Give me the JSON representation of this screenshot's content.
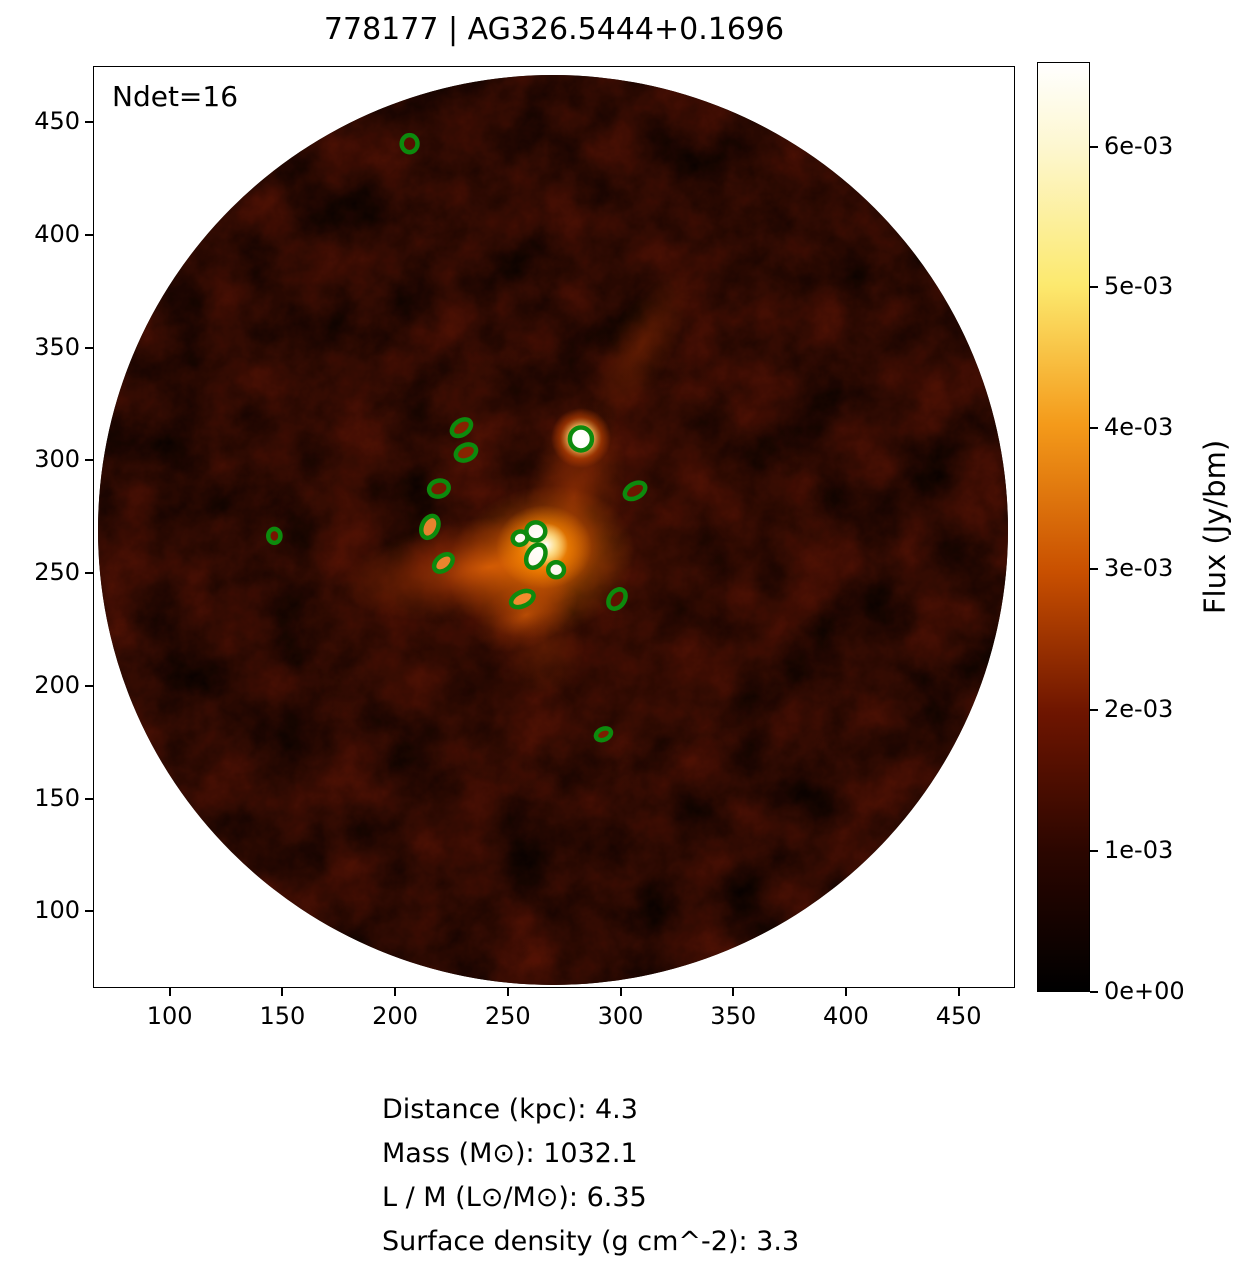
{
  "title": "778177 | AG326.5444+0.1696",
  "annotation": "Ndet=16",
  "footer": {
    "lines": [
      "Distance (kpc): 4.3",
      "Mass (M⊙): 1032.1",
      "L / M (L⊙/M⊙): 6.35",
      "Surface density (g cm^-2): 3.3"
    ],
    "values": {
      "distance_kpc": 4.3,
      "mass_msun": 1032.1,
      "l_over_m": 6.35,
      "surface_density_g_cm2": 3.3
    }
  },
  "chart_data": {
    "type": "heatmap",
    "title": "778177 | AG326.5444+0.1696",
    "xlabel": "",
    "ylabel": "",
    "xlim": [
      66,
      475
    ],
    "ylim": [
      66,
      475
    ],
    "xticks": [
      100,
      150,
      200,
      250,
      300,
      350,
      400,
      450
    ],
    "yticks": [
      100,
      150,
      200,
      250,
      300,
      350,
      400,
      450
    ],
    "grid": false,
    "annotation": "Ndet=16",
    "n_detections": 16,
    "field_of_view": {
      "center_x": 270,
      "center_y": 269,
      "radius": 202
    },
    "colorbar": {
      "label": "Flux (Jy/bm)",
      "vmin": 0.0,
      "vmax": 0.0066,
      "colormap": "afmhot",
      "ticks": [
        {
          "value": 0.0,
          "label": "0e+00"
        },
        {
          "value": 0.001,
          "label": "1e-03"
        },
        {
          "value": 0.002,
          "label": "2e-03"
        },
        {
          "value": 0.003,
          "label": "3e-03"
        },
        {
          "value": 0.004,
          "label": "4e-03"
        },
        {
          "value": 0.005,
          "label": "5e-03"
        },
        {
          "value": 0.006,
          "label": "6e-03"
        }
      ]
    },
    "detections": [
      {
        "x": 206,
        "y": 441,
        "rx": 3.5,
        "ry": 3.8,
        "angle": 0,
        "core": "#5a1000"
      },
      {
        "x": 229,
        "y": 315,
        "rx": 4.7,
        "ry": 3.1,
        "angle": -35,
        "core": "#8a2500"
      },
      {
        "x": 231,
        "y": 304,
        "rx": 4.7,
        "ry": 3.3,
        "angle": -25,
        "core": "#8a2500"
      },
      {
        "x": 219,
        "y": 288,
        "rx": 4.4,
        "ry": 3.5,
        "angle": -15,
        "core": "#7a1c00"
      },
      {
        "x": 282,
        "y": 310,
        "rx": 4.9,
        "ry": 5.1,
        "angle": 0,
        "core": "#ffffff"
      },
      {
        "x": 306,
        "y": 287,
        "rx": 4.9,
        "ry": 3.1,
        "angle": -30,
        "core": "#701800"
      },
      {
        "x": 215,
        "y": 271,
        "rx": 3.5,
        "ry": 5.1,
        "angle": 25,
        "core": "#f08a30"
      },
      {
        "x": 221,
        "y": 255,
        "rx": 4.7,
        "ry": 3.1,
        "angle": -40,
        "core": "#f08a30"
      },
      {
        "x": 255,
        "y": 266,
        "rx": 3.3,
        "ry": 2.9,
        "angle": -20,
        "core": "#ffffff"
      },
      {
        "x": 262,
        "y": 269,
        "rx": 4.2,
        "ry": 4.0,
        "angle": 0,
        "core": "#ffffff"
      },
      {
        "x": 262,
        "y": 258,
        "rx": 3.8,
        "ry": 5.5,
        "angle": 30,
        "core": "#ffffff"
      },
      {
        "x": 271,
        "y": 252,
        "rx": 3.5,
        "ry": 3.3,
        "angle": 0,
        "core": "#ffffff"
      },
      {
        "x": 256,
        "y": 239,
        "rx": 5.3,
        "ry": 3.1,
        "angle": -25,
        "core": "#f59030"
      },
      {
        "x": 298,
        "y": 239,
        "rx": 3.3,
        "ry": 4.7,
        "angle": 35,
        "core": "#601400"
      },
      {
        "x": 146,
        "y": 267,
        "rx": 2.7,
        "ry": 3.1,
        "angle": 0,
        "core": "#7a1500"
      },
      {
        "x": 292,
        "y": 179,
        "rx": 3.5,
        "ry": 2.4,
        "angle": -25,
        "core": "#802000"
      }
    ],
    "detection_color": "#0d8a0d"
  }
}
